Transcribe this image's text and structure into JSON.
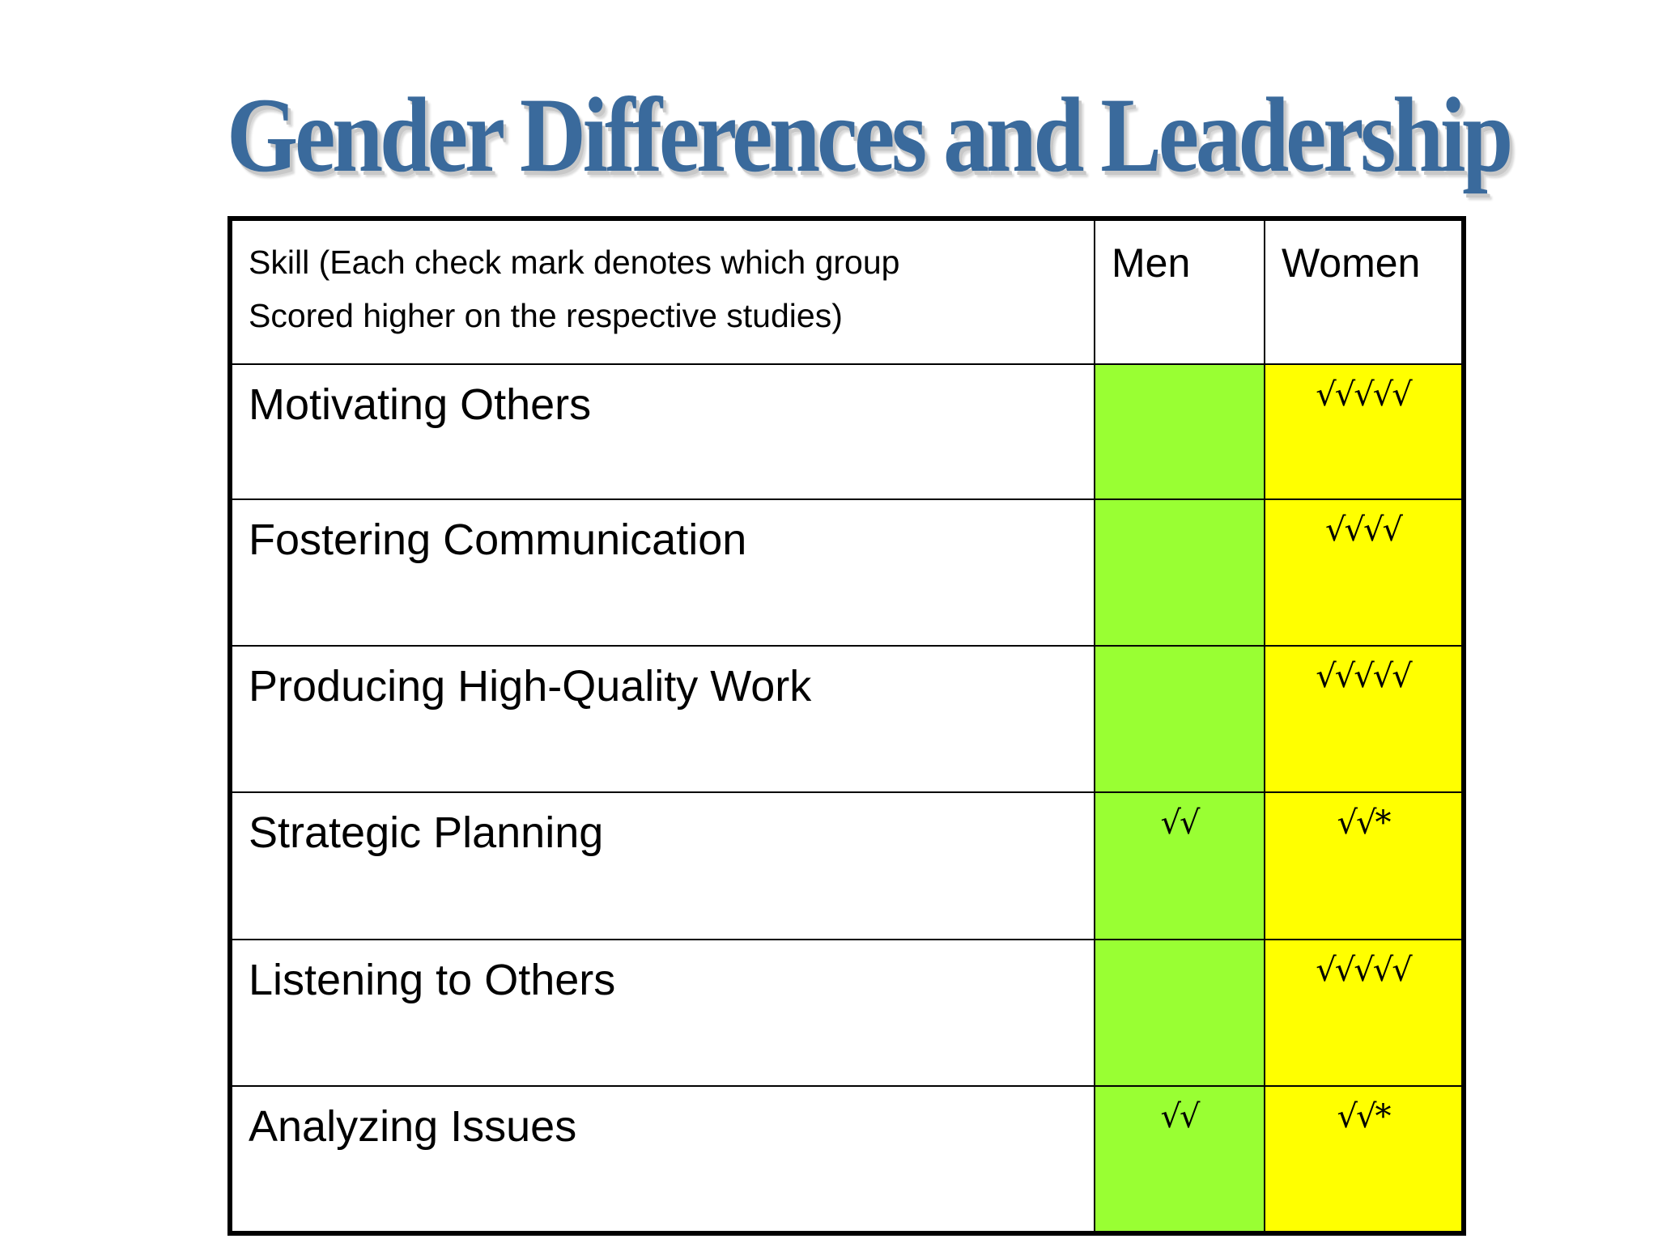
{
  "title": "Gender Differences and Leadership",
  "table": {
    "header": {
      "skill_line1": "Skill (Each check mark denotes which group",
      "skill_line2": "Scored higher on the respective studies)",
      "men": "Men",
      "women": "Women"
    },
    "rows": [
      {
        "skill": "Motivating Others",
        "men": "",
        "women": "√√√√√"
      },
      {
        "skill": "Fostering Communication",
        "men": "",
        "women": "√√√√"
      },
      {
        "skill": "Producing High-Quality Work",
        "men": "",
        "women": "√√√√√"
      },
      {
        "skill": "Strategic Planning",
        "men": "√√",
        "women": "√√*"
      },
      {
        "skill": "Listening to Others",
        "men": "",
        "women": "√√√√√"
      },
      {
        "skill": "Analyzing Issues",
        "men": "√√",
        "women": "√√*"
      }
    ]
  },
  "colors": {
    "title": "#3a6a9c",
    "men_column": "#99ff33",
    "women_column": "#ffff00"
  }
}
